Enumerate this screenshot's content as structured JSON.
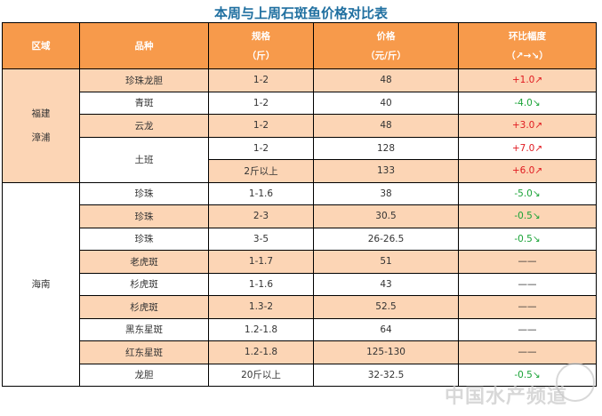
{
  "title": "本周与上周石斑鱼价格对比表",
  "headers": {
    "region": "区域",
    "variety": "品种",
    "spec": "规格",
    "spec_unit": "（斤）",
    "price": "价格",
    "price_unit": "（元/斤）",
    "change": "环比幅度",
    "change_unit": "（↗→↘）"
  },
  "regions": {
    "fujian_1": "福建",
    "fujian_2": "漳浦",
    "hainan": "海南"
  },
  "rows": [
    {
      "variety": "珍珠龙胆",
      "spec": "1-2",
      "price": "48",
      "change": "+1.0↗"
    },
    {
      "variety": "青斑",
      "spec": "1-2",
      "price": "40",
      "change": "-4.0↘"
    },
    {
      "variety": "云龙",
      "spec": "1-2",
      "price": "48",
      "change": "+3.0↗"
    },
    {
      "variety": "土班",
      "spec": "1-2",
      "price": "128",
      "change": "+7.0↗"
    },
    {
      "variety": "土班",
      "spec": "2斤以上",
      "price": "133",
      "change": "+6.0↗"
    },
    {
      "variety": "珍珠",
      "spec": "1-1.6",
      "price": "38",
      "change": "-5.0↘"
    },
    {
      "variety": "珍珠",
      "spec": "2-3",
      "price": "30.5",
      "change": "-0.5↘"
    },
    {
      "variety": "珍珠",
      "spec": "3-5",
      "price": "26-26.5",
      "change": "-0.5↘"
    },
    {
      "variety": "老虎斑",
      "spec": "1-1.7",
      "price": "51",
      "change": "——"
    },
    {
      "variety": "杉虎斑",
      "spec": "1-1.6",
      "price": "43",
      "change": "——"
    },
    {
      "variety": "杉虎斑",
      "spec": "1.3-2",
      "price": "52.5",
      "change": "——"
    },
    {
      "variety": "黑东星斑",
      "spec": "1.2-1.8",
      "price": "64",
      "change": "——"
    },
    {
      "variety": "红东星斑",
      "spec": "1.2-1.8",
      "price": "125-130",
      "change": "——"
    },
    {
      "variety": "龙胆",
      "spec": "20斤以上",
      "price": "32-32.5",
      "change": "-0.5↘"
    }
  ],
  "watermark": "中国水产频道"
}
